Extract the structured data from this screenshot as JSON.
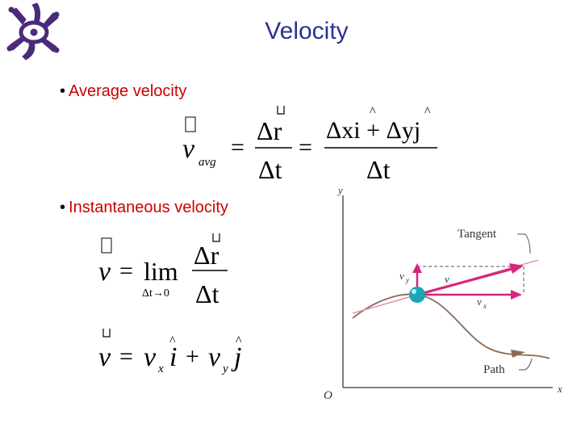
{
  "slide": {
    "title": "Velocity"
  },
  "bullets": [
    {
      "label": "Average velocity"
    },
    {
      "label": "Instantaneous velocity"
    }
  ],
  "equations": {
    "avg": {
      "lhs_var": "v",
      "lhs_sub": "avg",
      "num1": "Δr",
      "den1": "Δt",
      "num2": "Δxi + Δyj",
      "den2": "Δt"
    },
    "inst": {
      "v": "v",
      "lim": "lim",
      "lim_sub": "Δt→0",
      "num": "Δr",
      "den": "Δt"
    },
    "components": {
      "v": "v",
      "vx": "v",
      "vx_sub": "x",
      "vy": "v",
      "vy_sub": "y",
      "i": "i",
      "j": "j"
    }
  },
  "diagram": {
    "axis_y": "y",
    "axis_x": "x",
    "origin": "O",
    "tangent_label": "Tangent",
    "path_label": "Path",
    "vy_label": "v",
    "vy_sub": "y",
    "v_label": "v",
    "vx_label": "v",
    "vx_sub": "x",
    "colors": {
      "arrow": "#d6247a",
      "path": "#8b6b55",
      "ball": "#1aa6b8",
      "tangent": "#d88aa8"
    }
  }
}
